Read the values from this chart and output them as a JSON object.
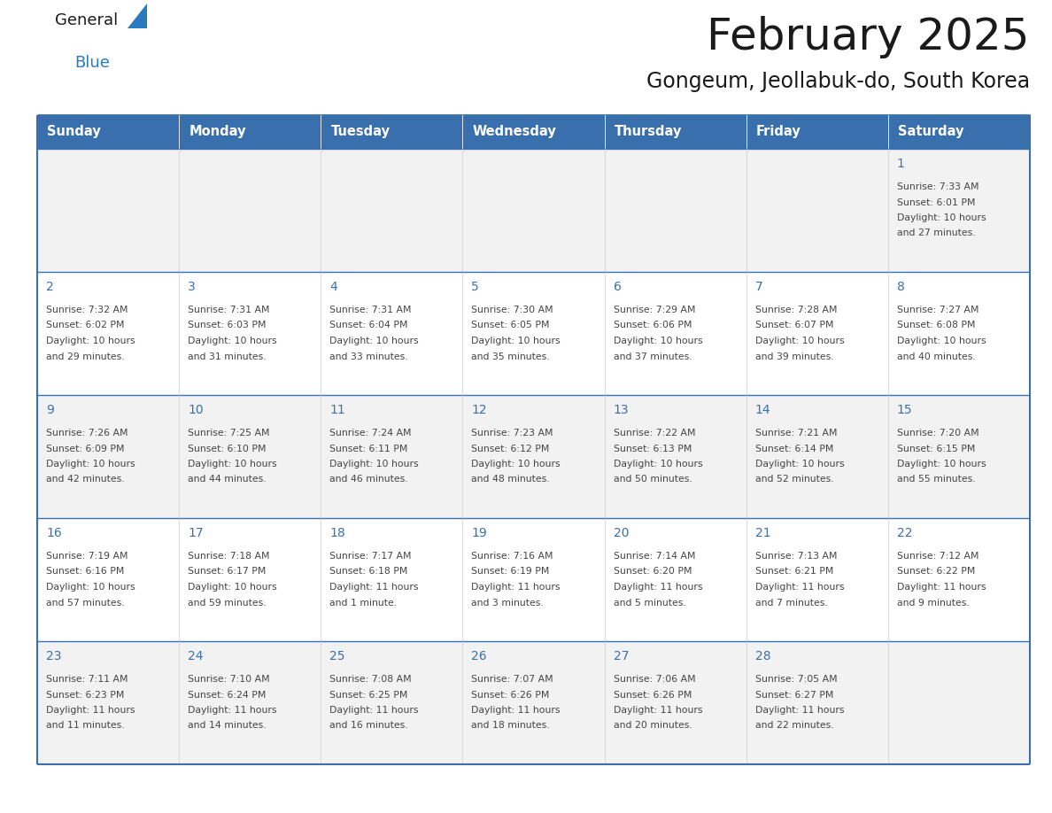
{
  "title": "February 2025",
  "subtitle": "Gongeum, Jeollabuk-do, South Korea",
  "days_of_week": [
    "Sunday",
    "Monday",
    "Tuesday",
    "Wednesday",
    "Thursday",
    "Friday",
    "Saturday"
  ],
  "header_bg": "#3a6fad",
  "header_text": "#FFFFFF",
  "row_bg": [
    "#f2f2f2",
    "#ffffff",
    "#f2f2f2",
    "#ffffff",
    "#f2f2f2"
  ],
  "cell_border_color": "#3a6fad",
  "title_color": "#1a1a1a",
  "subtitle_color": "#1a1a1a",
  "day_num_color": "#3a6fad",
  "cell_text_color": "#444444",
  "logo_general_color": "#1a1a1a",
  "logo_blue_color": "#2a7abf",
  "calendar_data": [
    [
      null,
      null,
      null,
      null,
      null,
      null,
      {
        "day": 1,
        "sunrise": "7:33 AM",
        "sunset": "6:01 PM",
        "daylight": "10 hours and 27 minutes."
      }
    ],
    [
      {
        "day": 2,
        "sunrise": "7:32 AM",
        "sunset": "6:02 PM",
        "daylight": "10 hours and 29 minutes."
      },
      {
        "day": 3,
        "sunrise": "7:31 AM",
        "sunset": "6:03 PM",
        "daylight": "10 hours and 31 minutes."
      },
      {
        "day": 4,
        "sunrise": "7:31 AM",
        "sunset": "6:04 PM",
        "daylight": "10 hours and 33 minutes."
      },
      {
        "day": 5,
        "sunrise": "7:30 AM",
        "sunset": "6:05 PM",
        "daylight": "10 hours and 35 minutes."
      },
      {
        "day": 6,
        "sunrise": "7:29 AM",
        "sunset": "6:06 PM",
        "daylight": "10 hours and 37 minutes."
      },
      {
        "day": 7,
        "sunrise": "7:28 AM",
        "sunset": "6:07 PM",
        "daylight": "10 hours and 39 minutes."
      },
      {
        "day": 8,
        "sunrise": "7:27 AM",
        "sunset": "6:08 PM",
        "daylight": "10 hours and 40 minutes."
      }
    ],
    [
      {
        "day": 9,
        "sunrise": "7:26 AM",
        "sunset": "6:09 PM",
        "daylight": "10 hours and 42 minutes."
      },
      {
        "day": 10,
        "sunrise": "7:25 AM",
        "sunset": "6:10 PM",
        "daylight": "10 hours and 44 minutes."
      },
      {
        "day": 11,
        "sunrise": "7:24 AM",
        "sunset": "6:11 PM",
        "daylight": "10 hours and 46 minutes."
      },
      {
        "day": 12,
        "sunrise": "7:23 AM",
        "sunset": "6:12 PM",
        "daylight": "10 hours and 48 minutes."
      },
      {
        "day": 13,
        "sunrise": "7:22 AM",
        "sunset": "6:13 PM",
        "daylight": "10 hours and 50 minutes."
      },
      {
        "day": 14,
        "sunrise": "7:21 AM",
        "sunset": "6:14 PM",
        "daylight": "10 hours and 52 minutes."
      },
      {
        "day": 15,
        "sunrise": "7:20 AM",
        "sunset": "6:15 PM",
        "daylight": "10 hours and 55 minutes."
      }
    ],
    [
      {
        "day": 16,
        "sunrise": "7:19 AM",
        "sunset": "6:16 PM",
        "daylight": "10 hours and 57 minutes."
      },
      {
        "day": 17,
        "sunrise": "7:18 AM",
        "sunset": "6:17 PM",
        "daylight": "10 hours and 59 minutes."
      },
      {
        "day": 18,
        "sunrise": "7:17 AM",
        "sunset": "6:18 PM",
        "daylight": "11 hours and 1 minute."
      },
      {
        "day": 19,
        "sunrise": "7:16 AM",
        "sunset": "6:19 PM",
        "daylight": "11 hours and 3 minutes."
      },
      {
        "day": 20,
        "sunrise": "7:14 AM",
        "sunset": "6:20 PM",
        "daylight": "11 hours and 5 minutes."
      },
      {
        "day": 21,
        "sunrise": "7:13 AM",
        "sunset": "6:21 PM",
        "daylight": "11 hours and 7 minutes."
      },
      {
        "day": 22,
        "sunrise": "7:12 AM",
        "sunset": "6:22 PM",
        "daylight": "11 hours and 9 minutes."
      }
    ],
    [
      {
        "day": 23,
        "sunrise": "7:11 AM",
        "sunset": "6:23 PM",
        "daylight": "11 hours and 11 minutes."
      },
      {
        "day": 24,
        "sunrise": "7:10 AM",
        "sunset": "6:24 PM",
        "daylight": "11 hours and 14 minutes."
      },
      {
        "day": 25,
        "sunrise": "7:08 AM",
        "sunset": "6:25 PM",
        "daylight": "11 hours and 16 minutes."
      },
      {
        "day": 26,
        "sunrise": "7:07 AM",
        "sunset": "6:26 PM",
        "daylight": "11 hours and 18 minutes."
      },
      {
        "day": 27,
        "sunrise": "7:06 AM",
        "sunset": "6:26 PM",
        "daylight": "11 hours and 20 minutes."
      },
      {
        "day": 28,
        "sunrise": "7:05 AM",
        "sunset": "6:27 PM",
        "daylight": "11 hours and 22 minutes."
      },
      null
    ]
  ],
  "fig_width": 11.88,
  "fig_height": 9.18,
  "dpi": 100
}
